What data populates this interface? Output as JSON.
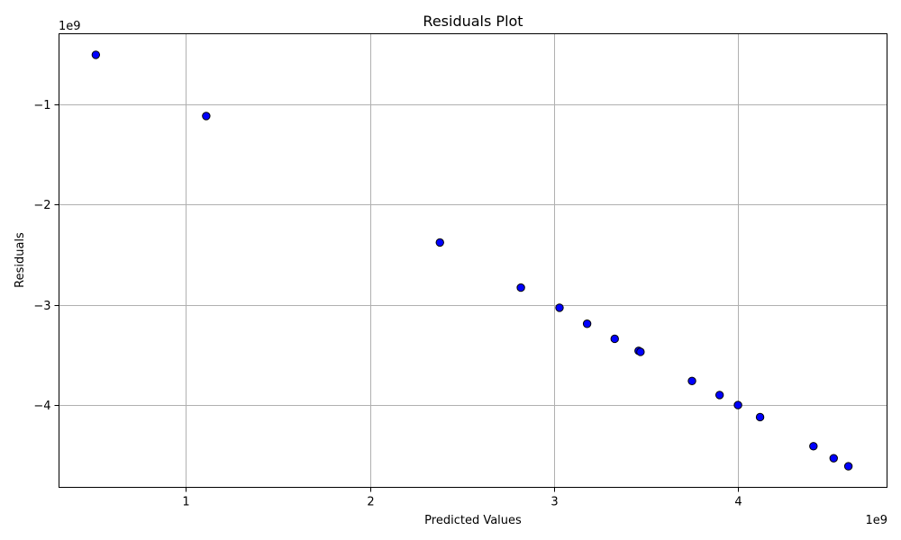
{
  "chart_data": {
    "type": "scatter",
    "title": "Residuals Plot",
    "xlabel": "Predicted Values",
    "ylabel": "Residuals",
    "x_multiplier_label": "1e9",
    "y_multiplier_label": "1e9",
    "x_scale": 1000000000,
    "y_scale": 1000000000,
    "xlim": [
      0.31,
      4.81
    ],
    "ylim": [
      -4.82,
      -0.3
    ],
    "x_ticks": [
      1,
      2,
      3,
      4
    ],
    "x_tick_labels": [
      "1",
      "2",
      "3",
      "4"
    ],
    "y_ticks": [
      -1,
      -2,
      -3,
      -4
    ],
    "y_tick_labels": [
      "−1",
      "−2",
      "−3",
      "−4"
    ],
    "grid": true,
    "marker_face_color": "#0000ff",
    "marker_edge_color": "#000000",
    "points": [
      {
        "x": 0.51,
        "y": -0.51
      },
      {
        "x": 1.11,
        "y": -1.12
      },
      {
        "x": 2.38,
        "y": -2.38
      },
      {
        "x": 2.82,
        "y": -2.83
      },
      {
        "x": 3.03,
        "y": -3.03
      },
      {
        "x": 3.18,
        "y": -3.19
      },
      {
        "x": 3.33,
        "y": -3.34
      },
      {
        "x": 3.46,
        "y": -3.46
      },
      {
        "x": 3.47,
        "y": -3.47
      },
      {
        "x": 3.75,
        "y": -3.76
      },
      {
        "x": 3.9,
        "y": -3.9
      },
      {
        "x": 4.0,
        "y": -4.0
      },
      {
        "x": 4.12,
        "y": -4.12
      },
      {
        "x": 4.41,
        "y": -4.41
      },
      {
        "x": 4.52,
        "y": -4.53
      },
      {
        "x": 4.6,
        "y": -4.61
      }
    ]
  }
}
